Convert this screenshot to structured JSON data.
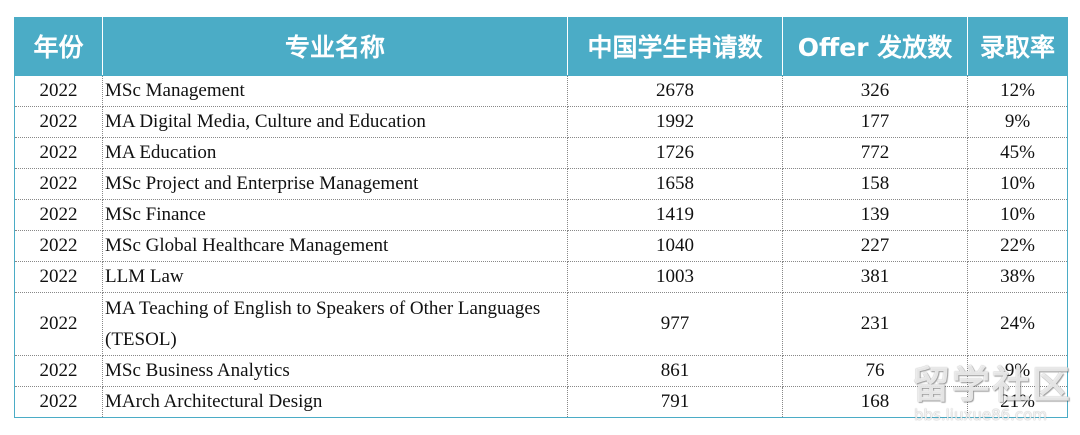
{
  "table": {
    "headers": [
      "年份",
      "专业名称",
      "中国学生申请数",
      "Offer 发放数",
      "录取率"
    ],
    "rows": [
      {
        "year": "2022",
        "major": "MSc Management",
        "applications": "2678",
        "offers": "326",
        "rate": "12%"
      },
      {
        "year": "2022",
        "major": "MA Digital Media, Culture and Education",
        "applications": "1992",
        "offers": "177",
        "rate": "9%"
      },
      {
        "year": "2022",
        "major": "MA Education",
        "applications": "1726",
        "offers": "772",
        "rate": "45%"
      },
      {
        "year": "2022",
        "major": "MSc Project and Enterprise Management",
        "applications": "1658",
        "offers": "158",
        "rate": "10%"
      },
      {
        "year": "2022",
        "major": "MSc Finance",
        "applications": "1419",
        "offers": "139",
        "rate": "10%"
      },
      {
        "year": "2022",
        "major": "MSc Global Healthcare Management",
        "applications": "1040",
        "offers": "227",
        "rate": "22%"
      },
      {
        "year": "2022",
        "major": "LLM Law",
        "applications": "1003",
        "offers": "381",
        "rate": "38%"
      },
      {
        "year": "2022",
        "major": "MA Teaching of English to Speakers of Other Languages (TESOL)",
        "applications": "977",
        "offers": "231",
        "rate": "24%"
      },
      {
        "year": "2022",
        "major": "MSc Business Analytics",
        "applications": "861",
        "offers": "76",
        "rate": "9%"
      },
      {
        "year": "2022",
        "major": "MArch Architectural Design",
        "applications": "791",
        "offers": "168",
        "rate": "21%"
      }
    ]
  },
  "watermark": {
    "title": "留学社区",
    "url": "bbs.liuxue86.com"
  }
}
